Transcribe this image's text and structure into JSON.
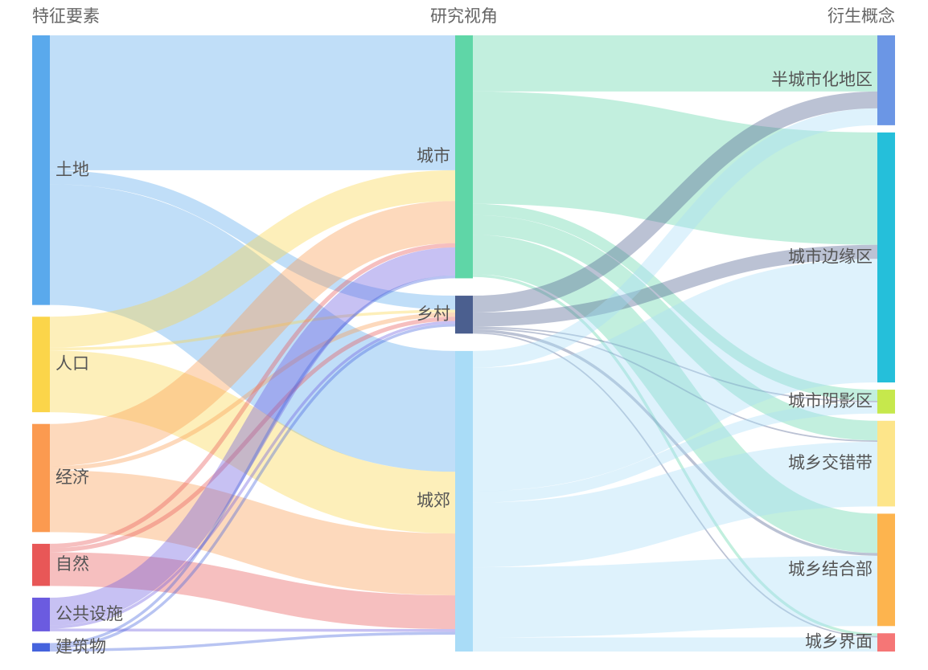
{
  "chart_data": {
    "type": "sankey",
    "columns": [
      {
        "title": "特征要素",
        "nodes": [
          {
            "id": "land",
            "label": "土地",
            "color": "#5aa9ec"
          },
          {
            "id": "pop",
            "label": "人口",
            "color": "#fbd54a"
          },
          {
            "id": "econ",
            "label": "经济",
            "color": "#fb9a50"
          },
          {
            "id": "nature",
            "label": "自然",
            "color": "#e85757"
          },
          {
            "id": "pub",
            "label": "公共设施",
            "color": "#6b5be0"
          },
          {
            "id": "bld",
            "label": "建筑物",
            "color": "#4563dd"
          }
        ]
      },
      {
        "title": "研究视角",
        "nodes": [
          {
            "id": "city",
            "label": "城市",
            "color": "#5fd6a7"
          },
          {
            "id": "rural",
            "label": "乡村",
            "color": "#4b5f8f"
          },
          {
            "id": "suburb",
            "label": "城郊",
            "color": "#a9dcf7"
          }
        ]
      },
      {
        "title": "衍生概念",
        "nodes": [
          {
            "id": "semi",
            "label": "半城市化地区",
            "color": "#6b96e5"
          },
          {
            "id": "fringe",
            "label": "城市边缘区",
            "color": "#25bfda"
          },
          {
            "id": "shadow",
            "label": "城市阴影区",
            "color": "#c6e84c"
          },
          {
            "id": "ecotone",
            "label": "城乡交错带",
            "color": "#fde58a"
          },
          {
            "id": "junction",
            "label": "城乡结合部",
            "color": "#fdb44e"
          },
          {
            "id": "interface",
            "label": "城乡界面",
            "color": "#f57676"
          }
        ]
      }
    ],
    "links": [
      {
        "source": "land",
        "target": "city",
        "value": 48
      },
      {
        "source": "land",
        "target": "rural",
        "value": 5
      },
      {
        "source": "land",
        "target": "suburb",
        "value": 43
      },
      {
        "source": "pop",
        "target": "city",
        "value": 11
      },
      {
        "source": "pop",
        "target": "rural",
        "value": 1
      },
      {
        "source": "pop",
        "target": "suburb",
        "value": 22
      },
      {
        "source": "econ",
        "target": "city",
        "value": 15
      },
      {
        "source": "econ",
        "target": "rural",
        "value": 1.5
      },
      {
        "source": "econ",
        "target": "suburb",
        "value": 22
      },
      {
        "source": "nature",
        "target": "city",
        "value": 1.5
      },
      {
        "source": "nature",
        "target": "rural",
        "value": 1.5
      },
      {
        "source": "nature",
        "target": "suburb",
        "value": 12
      },
      {
        "source": "pub",
        "target": "city",
        "value": 10
      },
      {
        "source": "pub",
        "target": "rural",
        "value": 1
      },
      {
        "source": "pub",
        "target": "suburb",
        "value": 1
      },
      {
        "source": "bld",
        "target": "city",
        "value": 1
      },
      {
        "source": "bld",
        "target": "rural",
        "value": 1
      },
      {
        "source": "bld",
        "target": "suburb",
        "value": 1
      },
      {
        "source": "city",
        "target": "semi",
        "value": 20
      },
      {
        "source": "city",
        "target": "fringe",
        "value": 40
      },
      {
        "source": "city",
        "target": "shadow",
        "value": 4
      },
      {
        "source": "city",
        "target": "ecotone",
        "value": 7
      },
      {
        "source": "city",
        "target": "junction",
        "value": 14
      },
      {
        "source": "city",
        "target": "interface",
        "value": 1
      },
      {
        "source": "rural",
        "target": "semi",
        "value": 6
      },
      {
        "source": "rural",
        "target": "fringe",
        "value": 5
      },
      {
        "source": "rural",
        "target": "shadow",
        "value": 0.5
      },
      {
        "source": "rural",
        "target": "ecotone",
        "value": 0.5
      },
      {
        "source": "rural",
        "target": "junction",
        "value": 1
      },
      {
        "source": "rural",
        "target": "interface",
        "value": 0.5
      },
      {
        "source": "suburb",
        "target": "semi",
        "value": 6
      },
      {
        "source": "suburb",
        "target": "fringe",
        "value": 44
      },
      {
        "source": "suburb",
        "target": "shadow",
        "value": 4
      },
      {
        "source": "suburb",
        "target": "ecotone",
        "value": 23
      },
      {
        "source": "suburb",
        "target": "junction",
        "value": 25
      },
      {
        "source": "suburb",
        "target": "interface",
        "value": 5
      }
    ]
  }
}
